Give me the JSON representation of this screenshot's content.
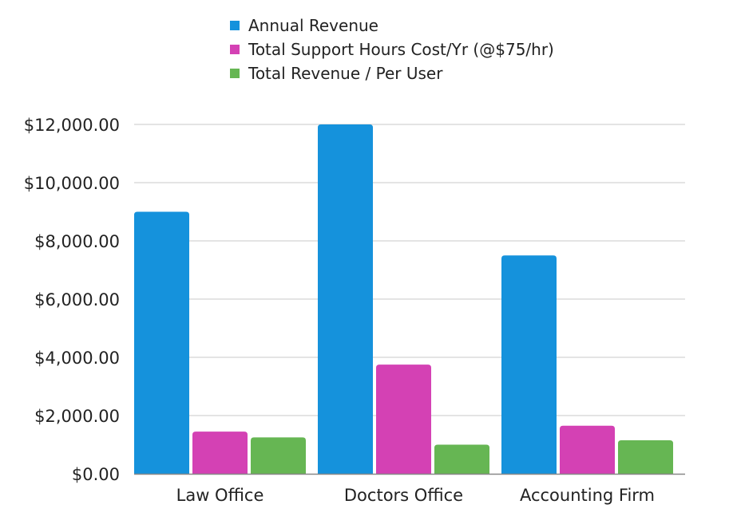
{
  "chart_data": {
    "type": "bar",
    "categories": [
      "Law Office",
      "Doctors Office",
      "Accounting Firm"
    ],
    "series": [
      {
        "name": "Annual Revenue",
        "color": "#1592dc",
        "values": [
          9000,
          12000,
          7500
        ]
      },
      {
        "name": "Total Support Hours Cost/Yr (@$75/hr)",
        "color": "#d441b4",
        "values": [
          1450,
          3750,
          1650
        ]
      },
      {
        "name": "Total Revenue / Per User",
        "color": "#66b653",
        "values": [
          1250,
          1000,
          1150
        ]
      }
    ],
    "ylim": [
      0,
      12000
    ],
    "yticks": [
      0,
      2000,
      4000,
      6000,
      8000,
      10000,
      12000
    ],
    "ytick_labels": [
      "$0.00",
      "$2,000.00",
      "$4,000.00",
      "$6,000.00",
      "$8,000.00",
      "$10,000.00",
      "$12,000.00"
    ],
    "grid": true,
    "legend_position": "top-center",
    "title": "",
    "xlabel": "",
    "ylabel": ""
  }
}
